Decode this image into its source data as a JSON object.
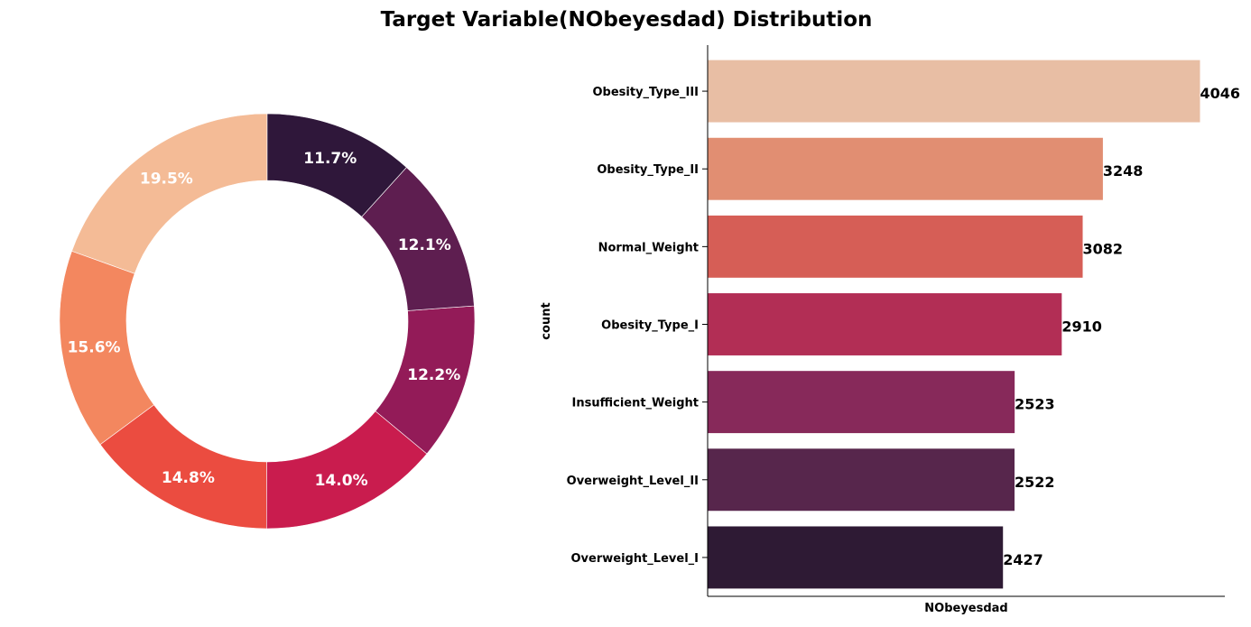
{
  "title": "Target Variable(NObeyesdad) Distribution",
  "chart_data": [
    {
      "type": "pie",
      "donut": true,
      "start_angle_deg": 90,
      "direction": "counterclockwise",
      "slices": [
        {
          "label": "19.5%",
          "value": 19.5,
          "color": "#f4bb96"
        },
        {
          "label": "15.6%",
          "value": 15.6,
          "color": "#f3875f"
        },
        {
          "label": "14.8%",
          "value": 14.8,
          "color": "#eb4c40"
        },
        {
          "label": "14.0%",
          "value": 14.0,
          "color": "#c91c4e"
        },
        {
          "label": "12.2%",
          "value": 12.2,
          "color": "#931b58"
        },
        {
          "label": "12.1%",
          "value": 12.1,
          "color": "#5e1e50"
        },
        {
          "label": "11.7%",
          "value": 11.7,
          "color": "#2f173a"
        }
      ]
    },
    {
      "type": "bar",
      "orientation": "horizontal",
      "categories": [
        "Obesity_Type_III",
        "Obesity_Type_II",
        "Normal_Weight",
        "Obesity_Type_I",
        "Insufficient_Weight",
        "Overweight_Level_II",
        "Overweight_Level_I"
      ],
      "values": [
        4046,
        3248,
        3082,
        2910,
        2523,
        2522,
        2427
      ],
      "data_labels": [
        "4046",
        "3248",
        "3082",
        "2910",
        "2523",
        "2522",
        "2427"
      ],
      "colors": [
        "#e8bea4",
        "#e18e72",
        "#d65e56",
        "#b22e55",
        "#87295a",
        "#57264c",
        "#2e1a34"
      ],
      "xlabel": "NObeyesdad",
      "ylabel": "count",
      "xlim": [
        0,
        4250
      ]
    }
  ]
}
